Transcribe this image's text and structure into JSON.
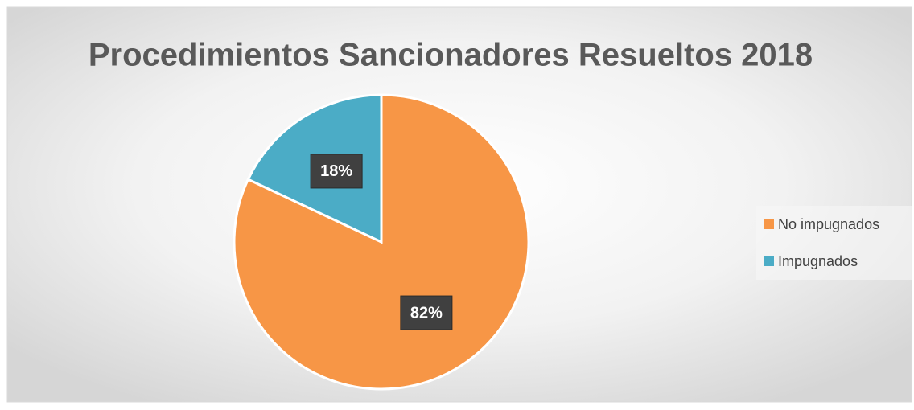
{
  "chart_data": {
    "type": "pie",
    "title": "Procedimientos Sancionadores Resueltos 2018",
    "categories": [
      "No impugnados",
      "Impugnados"
    ],
    "values": [
      82,
      18
    ],
    "value_labels": [
      "82%",
      "18%"
    ],
    "colors": [
      "#F79646",
      "#4BACC6"
    ],
    "legend": "right"
  }
}
